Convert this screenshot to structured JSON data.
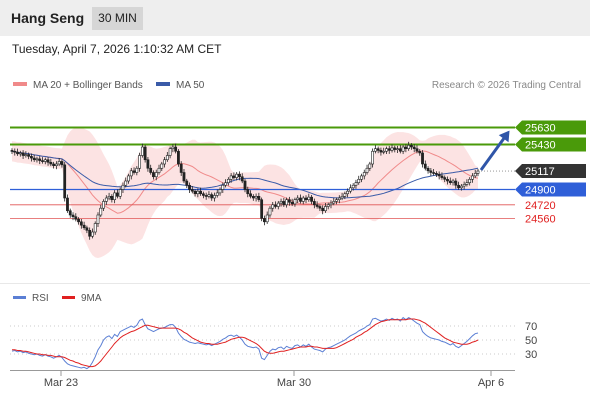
{
  "header": {
    "title": "Hang Seng",
    "timeframe": "30 MIN"
  },
  "datetime": "Tuesday, April 7, 2026 1:10:32 AM CET",
  "legend": {
    "ma20_label": "MA 20 + Bollinger Bands",
    "ma50_label": "MA 50",
    "copyright": "Research © 2026 Trading Central"
  },
  "rsi_legend": {
    "rsi_label": "RSI",
    "ma_label": "9MA"
  },
  "colors": {
    "ma20": "#f08a8a",
    "ma50": "#3a5ba8",
    "band_fill": "#fbd9d9",
    "resistance": "#4a9a0a",
    "support_line": "#e05555",
    "support_label": "#e02020",
    "pivot": "#2f5fd8",
    "last_price": "#333333",
    "arrow": "#2f55a8",
    "rsi": "#5b7fd4",
    "rsi_ma": "#e02020"
  },
  "chart_data": [
    {
      "type": "candlestick",
      "x_ticks": [
        "Mar 23",
        "Mar 30",
        "Apr 6"
      ],
      "ylim": [
        23800,
        26000
      ],
      "levels": [
        {
          "value": 25630,
          "label": "25630",
          "kind": "resistance"
        },
        {
          "value": 25430,
          "label": "25430",
          "kind": "resistance"
        },
        {
          "value": 25117,
          "label": "25117",
          "kind": "last_price"
        },
        {
          "value": 24900,
          "label": "24900",
          "kind": "pivot"
        },
        {
          "value": 24720,
          "label": "24720",
          "kind": "support"
        },
        {
          "value": 24560,
          "label": "24560",
          "kind": "support"
        }
      ],
      "forecast": {
        "from": 25117,
        "to": 25630,
        "direction": "up"
      },
      "close": [
        25350,
        25340,
        25320,
        25330,
        25300,
        25310,
        25290,
        25270,
        25250,
        25260,
        25240,
        25230,
        25250,
        25220,
        25200,
        25180,
        25200,
        25230,
        25190,
        24800,
        24650,
        24600,
        24580,
        24550,
        24520,
        24480,
        24450,
        24420,
        24350,
        24400,
        24500,
        24600,
        24680,
        24760,
        24800,
        24820,
        24780,
        24860,
        24820,
        24900,
        24950,
        25000,
        25060,
        25120,
        25100,
        25150,
        25300,
        25400,
        25250,
        25150,
        25100,
        25050,
        25100,
        25150,
        25200,
        25250,
        25300,
        25380,
        25400,
        25350,
        25200,
        25100,
        25000,
        24950,
        24900,
        24880,
        24850,
        24880,
        24850,
        24830,
        24820,
        24840,
        24800,
        24830,
        24860,
        24900,
        24950,
        24980,
        25020,
        25060,
        25040,
        25080,
        25050,
        25000,
        24900,
        24850,
        24820,
        24800,
        24820,
        24780,
        24560,
        24520,
        24600,
        24680,
        24720,
        24700,
        24740,
        24760,
        24720,
        24780,
        24750,
        24730,
        24780,
        24800,
        24760,
        24800,
        24780,
        24810,
        24760,
        24720,
        24700,
        24680,
        24650,
        24700,
        24720,
        24740,
        24760,
        24780,
        24800,
        24820,
        24850,
        24880,
        24920,
        24950,
        24980,
        25020,
        25060,
        25100,
        25150,
        25200,
        25350,
        25380,
        25360,
        25340,
        25350,
        25380,
        25360,
        25390,
        25370,
        25380,
        25350,
        25400,
        25380,
        25420,
        25400,
        25380,
        25350,
        25330,
        25200,
        25150,
        25120,
        25100,
        25090,
        25080,
        25060,
        25040,
        25020,
        25000,
        24980,
        25000,
        24950,
        24920,
        24940,
        24960,
        24980,
        25020,
        25060,
        25090,
        25117
      ]
    },
    {
      "type": "line",
      "title": "RSI",
      "y_ticks": [
        70,
        50,
        30
      ],
      "ylim": [
        10,
        90
      ],
      "series": [
        {
          "name": "RSI",
          "values": [
            34,
            35,
            33,
            34,
            32,
            33,
            31,
            30,
            29,
            30,
            28,
            27,
            29,
            27,
            26,
            24,
            26,
            28,
            25,
            20,
            16,
            14,
            13,
            12,
            11,
            10,
            11,
            9,
            12,
            18,
            26,
            36,
            42,
            50,
            54,
            56,
            52,
            58,
            55,
            62,
            64,
            66,
            68,
            70,
            68,
            71,
            78,
            80,
            72,
            66,
            64,
            62,
            64,
            66,
            67,
            68,
            70,
            72,
            72,
            68,
            60,
            55,
            51,
            49,
            47,
            46,
            45,
            46,
            45,
            44,
            43,
            44,
            42,
            44,
            46,
            48,
            51,
            53,
            56,
            57,
            55,
            57,
            54,
            50,
            44,
            41,
            40,
            39,
            40,
            37,
            24,
            22,
            28,
            34,
            37,
            36,
            39,
            40,
            37,
            41,
            39,
            38,
            42,
            43,
            40,
            43,
            41,
            44,
            40,
            37,
            36,
            35,
            33,
            37,
            39,
            40,
            42,
            44,
            46,
            48,
            50,
            53,
            56,
            58,
            60,
            63,
            65,
            67,
            70,
            72,
            80,
            81,
            79,
            77,
            78,
            80,
            78,
            81,
            79,
            80,
            77,
            82,
            79,
            82,
            80,
            77,
            74,
            72,
            62,
            58,
            55,
            53,
            52,
            51,
            50,
            48,
            47,
            45,
            43,
            45,
            41,
            39,
            42,
            45,
            48,
            52,
            56,
            59,
            60
          ]
        },
        {
          "name": "9MA",
          "values": [
            36,
            36,
            35,
            35,
            34,
            34,
            33,
            32,
            31,
            30,
            30,
            29,
            29,
            28,
            28,
            27,
            26,
            26,
            26,
            25,
            23,
            21,
            20,
            18,
            17,
            15,
            14,
            13,
            12,
            12,
            13,
            16,
            20,
            25,
            30,
            35,
            40,
            45,
            49,
            53,
            56,
            58,
            60,
            62,
            63,
            65,
            67,
            69,
            71,
            71,
            70,
            69,
            68,
            67,
            67,
            67,
            67,
            67,
            67,
            67,
            66,
            64,
            61,
            59,
            56,
            53,
            51,
            49,
            47,
            46,
            45,
            45,
            44,
            44,
            44,
            45,
            46,
            47,
            49,
            51,
            52,
            53,
            54,
            54,
            53,
            51,
            49,
            47,
            45,
            42,
            38,
            34,
            32,
            31,
            31,
            32,
            33,
            34,
            34,
            35,
            36,
            37,
            38,
            39,
            40,
            40,
            40,
            41,
            41,
            40,
            40,
            39,
            38,
            38,
            38,
            38,
            38,
            39,
            41,
            43,
            45,
            47,
            49,
            51,
            54,
            56,
            58,
            61,
            63,
            66,
            69,
            72,
            74,
            76,
            77,
            78,
            79,
            79,
            79,
            79,
            79,
            79,
            79,
            80,
            80,
            80,
            79,
            78,
            76,
            74,
            71,
            68,
            65,
            62,
            59,
            56,
            53,
            51,
            49,
            47,
            46,
            45,
            44,
            44,
            44,
            45,
            47,
            48,
            50
          ]
        }
      ]
    }
  ]
}
